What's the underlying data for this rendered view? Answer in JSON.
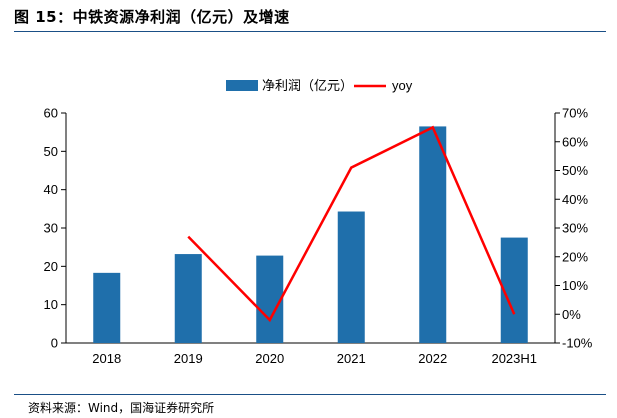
{
  "figure_title": "图 15：中铁资源净利润（亿元）及增速",
  "source_note": "资料来源：Wind，国海证券研究所",
  "chart_data": {
    "type": "bar",
    "categories": [
      "2018",
      "2019",
      "2020",
      "2021",
      "2022",
      "2023H1"
    ],
    "series": [
      {
        "name": "净利润（亿元）",
        "type": "bar",
        "axis": "left",
        "color": "#1f6fab",
        "values": [
          18.3,
          23.2,
          22.8,
          34.3,
          56.5,
          27.5
        ]
      },
      {
        "name": "yoy",
        "type": "line",
        "axis": "right",
        "color": "#ff0000",
        "values": [
          null,
          27,
          -2,
          51,
          65,
          0
        ]
      }
    ],
    "left_axis": {
      "min": 0,
      "max": 60,
      "step": 10,
      "ticks": [
        "0",
        "10",
        "20",
        "30",
        "40",
        "50",
        "60"
      ]
    },
    "right_axis": {
      "min": -10,
      "max": 70,
      "step": 10,
      "ticks": [
        "-10%",
        "0%",
        "10%",
        "20%",
        "30%",
        "40%",
        "50%",
        "60%",
        "70%"
      ]
    },
    "legend": {
      "position": "top-center"
    },
    "grid": false
  }
}
